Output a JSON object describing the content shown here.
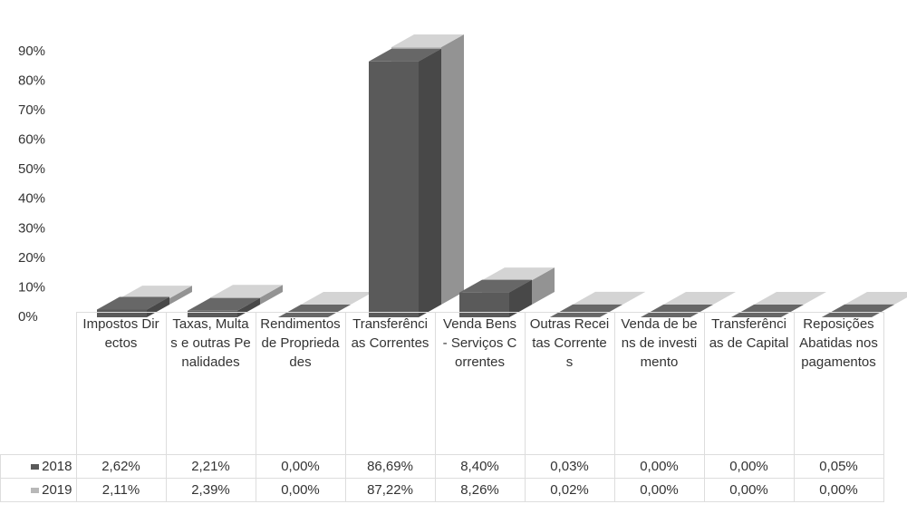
{
  "chart_data": {
    "type": "bar3d",
    "categories": [
      "Impostos Directos",
      "Taxas, Multas e outras Penalidades",
      "Rendimentos de Propriedades",
      "Transferências Correntes",
      "Venda Bens - Serviços Correntes",
      "Outras Receitas Correntes",
      "Venda de bens de investimento",
      "Transferências de Capital",
      "Reposições Abatidas nos pagamentos"
    ],
    "series": [
      {
        "name": "2018",
        "color": "#5a5a5a",
        "values": [
          2.62,
          2.21,
          0,
          86.69,
          8.4,
          0.03,
          0,
          0,
          0.05
        ],
        "value_labels": [
          "2,62%",
          "2,21%",
          "0,00%",
          "86,69%",
          "8,40%",
          "0,03%",
          "0,00%",
          "0,00%",
          "0,05%"
        ]
      },
      {
        "name": "2019",
        "color": "#b8b8b8",
        "values": [
          2.11,
          2.39,
          0,
          87.22,
          8.26,
          0.02,
          0,
          0,
          0
        ],
        "value_labels": [
          "2,11%",
          "2,39%",
          "0,00%",
          "87,22%",
          "8,26%",
          "0,02%",
          "0,00%",
          "0,00%",
          "0,00%"
        ]
      }
    ],
    "ylim": [
      0,
      90
    ],
    "yticks": [
      {
        "value": 0,
        "label": "0%"
      },
      {
        "value": 10,
        "label": "10%"
      },
      {
        "value": 20,
        "label": "20%"
      },
      {
        "value": 30,
        "label": "30%"
      },
      {
        "value": 40,
        "label": "40%"
      },
      {
        "value": 50,
        "label": "50%"
      },
      {
        "value": 60,
        "label": "60%"
      },
      {
        "value": 70,
        "label": "70%"
      },
      {
        "value": 80,
        "label": "80%"
      },
      {
        "value": 90,
        "label": "90%"
      }
    ]
  }
}
